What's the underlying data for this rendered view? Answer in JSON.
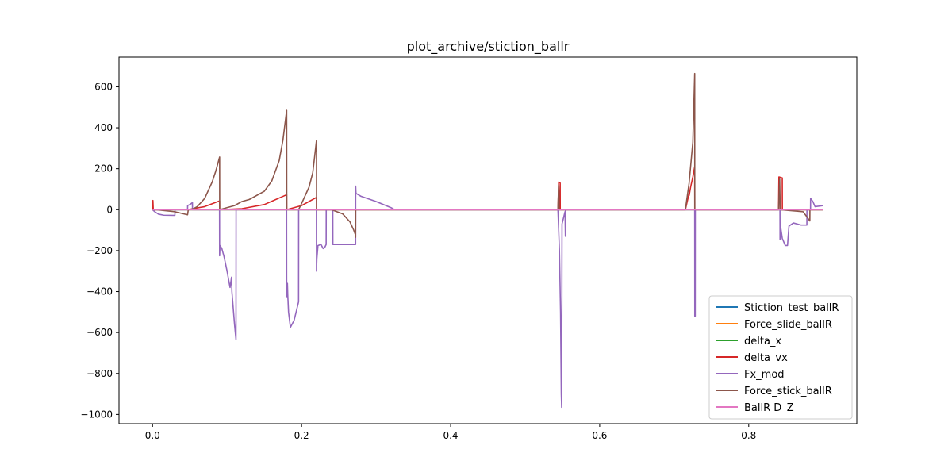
{
  "chart_data": {
    "type": "line",
    "title": "plot_archive/stiction_ballr",
    "xlabel": "",
    "ylabel": "",
    "xlim": [
      -0.045,
      0.945
    ],
    "ylim": [
      -1045,
      745
    ],
    "xticks": [
      0.0,
      0.2,
      0.4,
      0.6,
      0.8
    ],
    "xtick_labels": [
      "0.0",
      "0.2",
      "0.4",
      "0.6",
      "0.8"
    ],
    "yticks": [
      -1000,
      -800,
      -600,
      -400,
      -200,
      0,
      200,
      400,
      600
    ],
    "ytick_labels": [
      "−1000",
      "−800",
      "−600",
      "−400",
      "−200",
      "0",
      "200",
      "400",
      "600"
    ],
    "grid": false,
    "legend_position": "lower right",
    "series": [
      {
        "name": "Stiction_test_ballR",
        "color": "#1f77b4",
        "x": [
          0.0,
          0.9
        ],
        "y": [
          0,
          0
        ]
      },
      {
        "name": "Force_slide_ballR",
        "color": "#ff7f0e",
        "x": [
          0.0,
          0.9
        ],
        "y": [
          0,
          0
        ]
      },
      {
        "name": "delta_x",
        "color": "#2ca02c",
        "x": [
          0.0,
          0.9
        ],
        "y": [
          0,
          0
        ]
      },
      {
        "name": "delta_vx",
        "color": "#d62728",
        "x": [
          0.0,
          0.0005,
          0.001,
          0.005,
          0.05,
          0.07,
          0.09,
          0.0901,
          0.12,
          0.15,
          0.18,
          0.1801,
          0.2,
          0.22,
          0.2201,
          0.544,
          0.545,
          0.547,
          0.5471,
          0.715,
          0.72,
          0.7201,
          0.722,
          0.725,
          0.7275,
          0.7276,
          0.84,
          0.8405,
          0.845,
          0.8451,
          0.9
        ],
        "y": [
          0,
          45,
          0,
          0,
          2,
          15,
          43,
          0,
          5,
          25,
          73,
          0,
          20,
          60,
          0,
          0,
          135,
          130,
          0,
          0,
          80,
          70,
          110,
          160,
          210,
          0,
          0,
          160,
          155,
          0,
          0
        ]
      },
      {
        "name": "Fx_mod",
        "color": "#9467bd",
        "x": [
          0.0,
          0.003,
          0.008,
          0.015,
          0.03,
          0.0301,
          0.047,
          0.0471,
          0.05,
          0.052,
          0.0535,
          0.0536,
          0.0899,
          0.09,
          0.0905,
          0.0915,
          0.093,
          0.096,
          0.1,
          0.104,
          0.106,
          0.1065,
          0.11,
          0.112,
          0.1121,
          0.1799,
          0.18,
          0.1805,
          0.181,
          0.1815,
          0.1825,
          0.185,
          0.19,
          0.196,
          0.1961,
          0.2199,
          0.22,
          0.2205,
          0.222,
          0.226,
          0.229,
          0.231,
          0.233,
          0.2331,
          0.2419,
          0.242,
          0.2725,
          0.2726,
          0.273,
          0.28,
          0.3,
          0.32,
          0.325,
          0.544,
          0.5445,
          0.546,
          0.5475,
          0.5485,
          0.549,
          0.5495,
          0.5535,
          0.554,
          0.5541,
          0.7275,
          0.7276,
          0.7282,
          0.7283,
          0.8419,
          0.842,
          0.843,
          0.845,
          0.849,
          0.852,
          0.854,
          0.86,
          0.87,
          0.877,
          0.878,
          0.8781,
          0.8829,
          0.883,
          0.886,
          0.889,
          0.8891,
          0.9
        ],
        "y": [
          0,
          -10,
          -22,
          -27,
          -28,
          0,
          0,
          20,
          25,
          30,
          35,
          0,
          0,
          -225,
          -175,
          -180,
          -190,
          -230,
          -300,
          -380,
          -330,
          -400,
          -560,
          -635,
          0,
          0,
          -425,
          -400,
          -360,
          -420,
          -500,
          -575,
          -540,
          -450,
          0,
          0,
          -300,
          -240,
          -175,
          -170,
          -190,
          -185,
          -170,
          0,
          0,
          -170,
          -170,
          115,
          80,
          65,
          40,
          10,
          0,
          0,
          -50,
          -200,
          -500,
          -900,
          -965,
          -70,
          -10,
          -130,
          0,
          0,
          -520,
          -520,
          0,
          0,
          -145,
          -90,
          -140,
          -175,
          -175,
          -80,
          -65,
          -75,
          -75,
          -75,
          0,
          0,
          55,
          40,
          15,
          15,
          20
        ]
      },
      {
        "name": "Force_stick_ballR",
        "color": "#8c564b",
        "x": [
          0.0,
          0.005,
          0.03,
          0.047,
          0.048,
          0.05,
          0.055,
          0.06,
          0.07,
          0.08,
          0.085,
          0.09,
          0.0901,
          0.11,
          0.12,
          0.13,
          0.15,
          0.16,
          0.17,
          0.175,
          0.18,
          0.1801,
          0.196,
          0.2,
          0.21,
          0.215,
          0.22,
          0.2201,
          0.24,
          0.255,
          0.265,
          0.27,
          0.272,
          0.2725,
          0.2726,
          0.544,
          0.545,
          0.5455,
          0.5456,
          0.715,
          0.72,
          0.725,
          0.7275,
          0.7276,
          0.84,
          0.8415,
          0.842,
          0.8421,
          0.873,
          0.878,
          0.882,
          0.8821,
          0.9
        ],
        "y": [
          0,
          0,
          -10,
          -25,
          0,
          0,
          5,
          15,
          55,
          135,
          190,
          257,
          0,
          20,
          40,
          50,
          90,
          140,
          240,
          340,
          485,
          0,
          0,
          30,
          110,
          180,
          338,
          0,
          0,
          -20,
          -60,
          -100,
          -120,
          -135,
          0,
          0,
          120,
          90,
          0,
          0,
          130,
          330,
          665,
          0,
          0,
          150,
          50,
          0,
          -10,
          -35,
          -55,
          0,
          0
        ]
      },
      {
        "name": "BallR D_Z",
        "color": "#e377c2",
        "x": [
          0.0,
          0.9
        ],
        "y": [
          0,
          0
        ]
      }
    ]
  }
}
